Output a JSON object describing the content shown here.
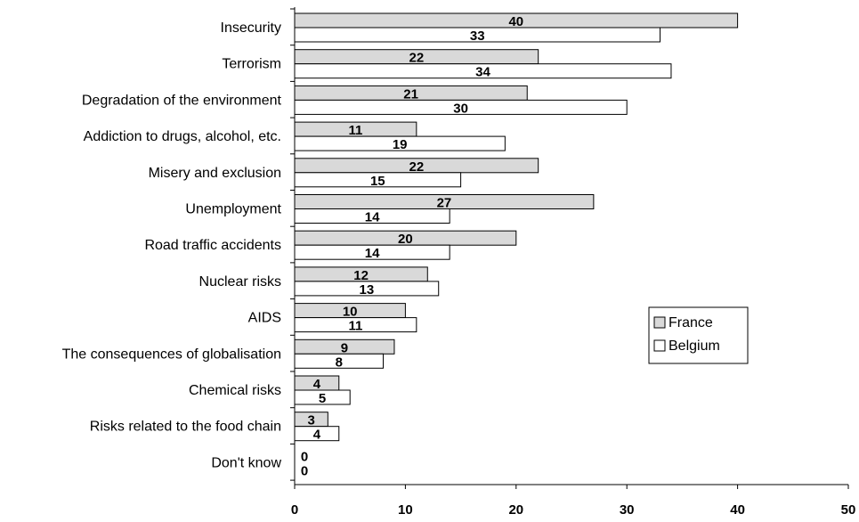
{
  "chart_data": {
    "type": "bar",
    "orientation": "horizontal",
    "categories": [
      "Insecurity",
      "Terrorism",
      "Degradation of the environment",
      "Addiction to drugs, alcohol, etc.",
      "Misery and exclusion",
      "Unemployment",
      "Road traffic accidents",
      "Nuclear risks",
      "AIDS",
      "The consequences of globalisation",
      "Chemical risks",
      "Risks related to the food chain",
      "Don't know"
    ],
    "series": [
      {
        "name": "France",
        "values": [
          40,
          22,
          21,
          11,
          22,
          27,
          20,
          12,
          10,
          9,
          4,
          3,
          0
        ],
        "color": "#d9d9d9"
      },
      {
        "name": "Belgium",
        "values": [
          33,
          34,
          30,
          19,
          15,
          14,
          14,
          13,
          11,
          8,
          5,
          4,
          0
        ],
        "color": "#ffffff"
      }
    ],
    "xlim": [
      0,
      50
    ],
    "xticks": [
      "0",
      "10",
      "20",
      "30",
      "40",
      "50"
    ],
    "grid": false,
    "legend_position": "right"
  }
}
